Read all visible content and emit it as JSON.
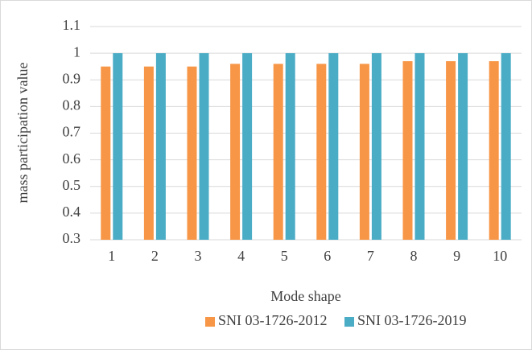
{
  "chart_data": {
    "type": "bar",
    "y_label": "mass participation value",
    "x_label": "Mode shape",
    "categories": [
      "1",
      "2",
      "3",
      "4",
      "5",
      "6",
      "7",
      "8",
      "9",
      "10"
    ],
    "series": [
      {
        "name": "SNI 03-1726-2012",
        "color": "#f79646",
        "values": [
          0.95,
          0.95,
          0.95,
          0.96,
          0.96,
          0.96,
          0.96,
          0.97,
          0.97,
          0.97
        ]
      },
      {
        "name": "SNI 03-1726-2019",
        "color": "#4bacc6",
        "values": [
          1,
          1,
          1,
          1,
          1,
          1,
          1,
          1,
          1,
          1
        ]
      }
    ],
    "ylim": [
      0.3,
      1.1
    ],
    "yticks": [
      0.3,
      0.4,
      0.5,
      0.6,
      0.7,
      0.8,
      0.9,
      1,
      1.1
    ],
    "grid": true,
    "legend": "bottom"
  }
}
